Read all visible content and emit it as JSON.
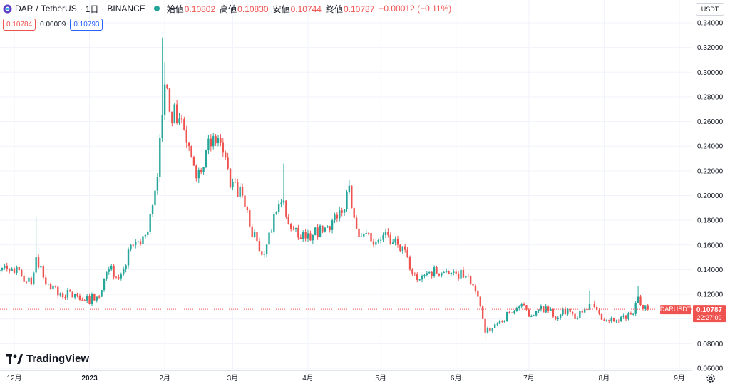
{
  "header": {
    "symbol": "DAR",
    "sep": "/",
    "quote": "TetherUS",
    "interval": "1日",
    "exchange": "BINANCE",
    "ohlc": [
      {
        "k": "始値",
        "v": "0.10802"
      },
      {
        "k": "高値",
        "v": "0.10830"
      },
      {
        "k": "安値",
        "v": "0.10744"
      },
      {
        "k": "終値",
        "v": "0.10787"
      }
    ],
    "change": "−0.00012 (−0.11%)",
    "bid": "0.10784",
    "spread": "0.00009",
    "ask": "0.10793"
  },
  "unit_label": "USDT",
  "watermark": "TradingView",
  "price_tag": {
    "symbol": "DARUSDT",
    "price": "0.10787",
    "countdown": "22:27:09"
  },
  "colors": {
    "up": "#26a69a",
    "down": "#ef5350",
    "grid": "#f0f3fa",
    "axis_text": "#131722"
  },
  "chart_data": {
    "type": "candlestick",
    "y_ticks": [
      "0.34000",
      "0.32000",
      "0.30000",
      "0.28000",
      "0.26000",
      "0.24000",
      "0.22000",
      "0.20000",
      "0.18000",
      "0.16000",
      "0.14000",
      "0.12000",
      "0.10000",
      "0.08000",
      "0.06000"
    ],
    "ylim": [
      0.058,
      0.35
    ],
    "x_labels": [
      {
        "label": "12月",
        "date": "2022-12-01"
      },
      {
        "label": "2023",
        "date": "2023-01-01",
        "bold": true
      },
      {
        "label": "2月",
        "date": "2023-02-01"
      },
      {
        "label": "3月",
        "date": "2023-03-01"
      },
      {
        "label": "4月",
        "date": "2023-04-01"
      },
      {
        "label": "5月",
        "date": "2023-05-01"
      },
      {
        "label": "6月",
        "date": "2023-06-01"
      },
      {
        "label": "7月",
        "date": "2023-07-01"
      },
      {
        "label": "8月",
        "date": "2023-08-01"
      },
      {
        "label": "9月",
        "date": "2023-09-01"
      }
    ],
    "last_price": 0.10787,
    "anchors": [
      {
        "date": "2022-11-19",
        "c": 0.134
      },
      {
        "date": "2022-11-30",
        "c": 0.141
      },
      {
        "date": "2022-12-08",
        "c": 0.128
      },
      {
        "date": "2022-12-10",
        "c": 0.15,
        "hi": 0.183
      },
      {
        "date": "2022-12-14",
        "c": 0.128
      },
      {
        "date": "2022-12-20",
        "c": 0.121
      },
      {
        "date": "2022-12-27",
        "c": 0.119
      },
      {
        "date": "2022-12-30",
        "c": 0.115
      },
      {
        "date": "2023-01-05",
        "c": 0.118
      },
      {
        "date": "2023-01-09",
        "c": 0.14
      },
      {
        "date": "2023-01-13",
        "c": 0.133
      },
      {
        "date": "2023-01-19",
        "c": 0.16
      },
      {
        "date": "2023-01-24",
        "c": 0.168
      },
      {
        "date": "2023-01-26",
        "c": 0.185
      },
      {
        "date": "2023-01-29",
        "c": 0.215
      },
      {
        "date": "2023-01-31",
        "c": 0.265,
        "hi": 0.328
      },
      {
        "date": "2023-02-01",
        "c": 0.29,
        "hi": 0.308
      },
      {
        "date": "2023-02-03",
        "c": 0.268
      },
      {
        "date": "2023-02-08",
        "c": 0.262
      },
      {
        "date": "2023-02-11",
        "c": 0.24
      },
      {
        "date": "2023-02-14",
        "c": 0.214
      },
      {
        "date": "2023-02-18",
        "c": 0.237
      },
      {
        "date": "2023-02-23",
        "c": 0.247
      },
      {
        "date": "2023-02-28",
        "c": 0.207
      },
      {
        "date": "2023-03-05",
        "c": 0.2
      },
      {
        "date": "2023-03-08",
        "c": 0.175
      },
      {
        "date": "2023-03-13",
        "c": 0.152
      },
      {
        "date": "2023-03-16",
        "c": 0.17
      },
      {
        "date": "2023-03-19",
        "c": 0.187
      },
      {
        "date": "2023-03-22",
        "c": 0.196,
        "hi": 0.226
      },
      {
        "date": "2023-03-25",
        "c": 0.173
      },
      {
        "date": "2023-03-29",
        "c": 0.165
      },
      {
        "date": "2023-04-03",
        "c": 0.168
      },
      {
        "date": "2023-04-07",
        "c": 0.171
      },
      {
        "date": "2023-04-11",
        "c": 0.18
      },
      {
        "date": "2023-04-15",
        "c": 0.186
      },
      {
        "date": "2023-04-18",
        "c": 0.208,
        "hi": 0.213
      },
      {
        "date": "2023-04-20",
        "c": 0.182
      },
      {
        "date": "2023-04-23",
        "c": 0.167
      },
      {
        "date": "2023-04-27",
        "c": 0.163
      },
      {
        "date": "2023-05-02",
        "c": 0.168
      },
      {
        "date": "2023-05-06",
        "c": 0.162
      },
      {
        "date": "2023-05-10",
        "c": 0.159
      },
      {
        "date": "2023-05-13",
        "c": 0.14
      },
      {
        "date": "2023-05-17",
        "c": 0.132
      },
      {
        "date": "2023-05-21",
        "c": 0.138
      },
      {
        "date": "2023-05-28",
        "c": 0.139
      },
      {
        "date": "2023-06-05",
        "c": 0.135
      },
      {
        "date": "2023-06-10",
        "c": 0.118
      },
      {
        "date": "2023-06-13",
        "c": 0.089,
        "lo": 0.083
      },
      {
        "date": "2023-06-18",
        "c": 0.096
      },
      {
        "date": "2023-06-23",
        "c": 0.105
      },
      {
        "date": "2023-06-27",
        "c": 0.11
      },
      {
        "date": "2023-07-03",
        "c": 0.103
      },
      {
        "date": "2023-07-08",
        "c": 0.11
      },
      {
        "date": "2023-07-13",
        "c": 0.101
      },
      {
        "date": "2023-07-17",
        "c": 0.108
      },
      {
        "date": "2023-07-21",
        "c": 0.101
      },
      {
        "date": "2023-07-26",
        "c": 0.112,
        "hi": 0.123
      },
      {
        "date": "2023-07-30",
        "c": 0.104
      },
      {
        "date": "2023-08-05",
        "c": 0.098
      },
      {
        "date": "2023-08-10",
        "c": 0.1
      },
      {
        "date": "2023-08-13",
        "c": 0.104
      },
      {
        "date": "2023-08-15",
        "c": 0.118,
        "hi": 0.127
      },
      {
        "date": "2023-08-17",
        "c": 0.108
      },
      {
        "date": "2023-08-19",
        "c": 0.10787
      }
    ]
  }
}
